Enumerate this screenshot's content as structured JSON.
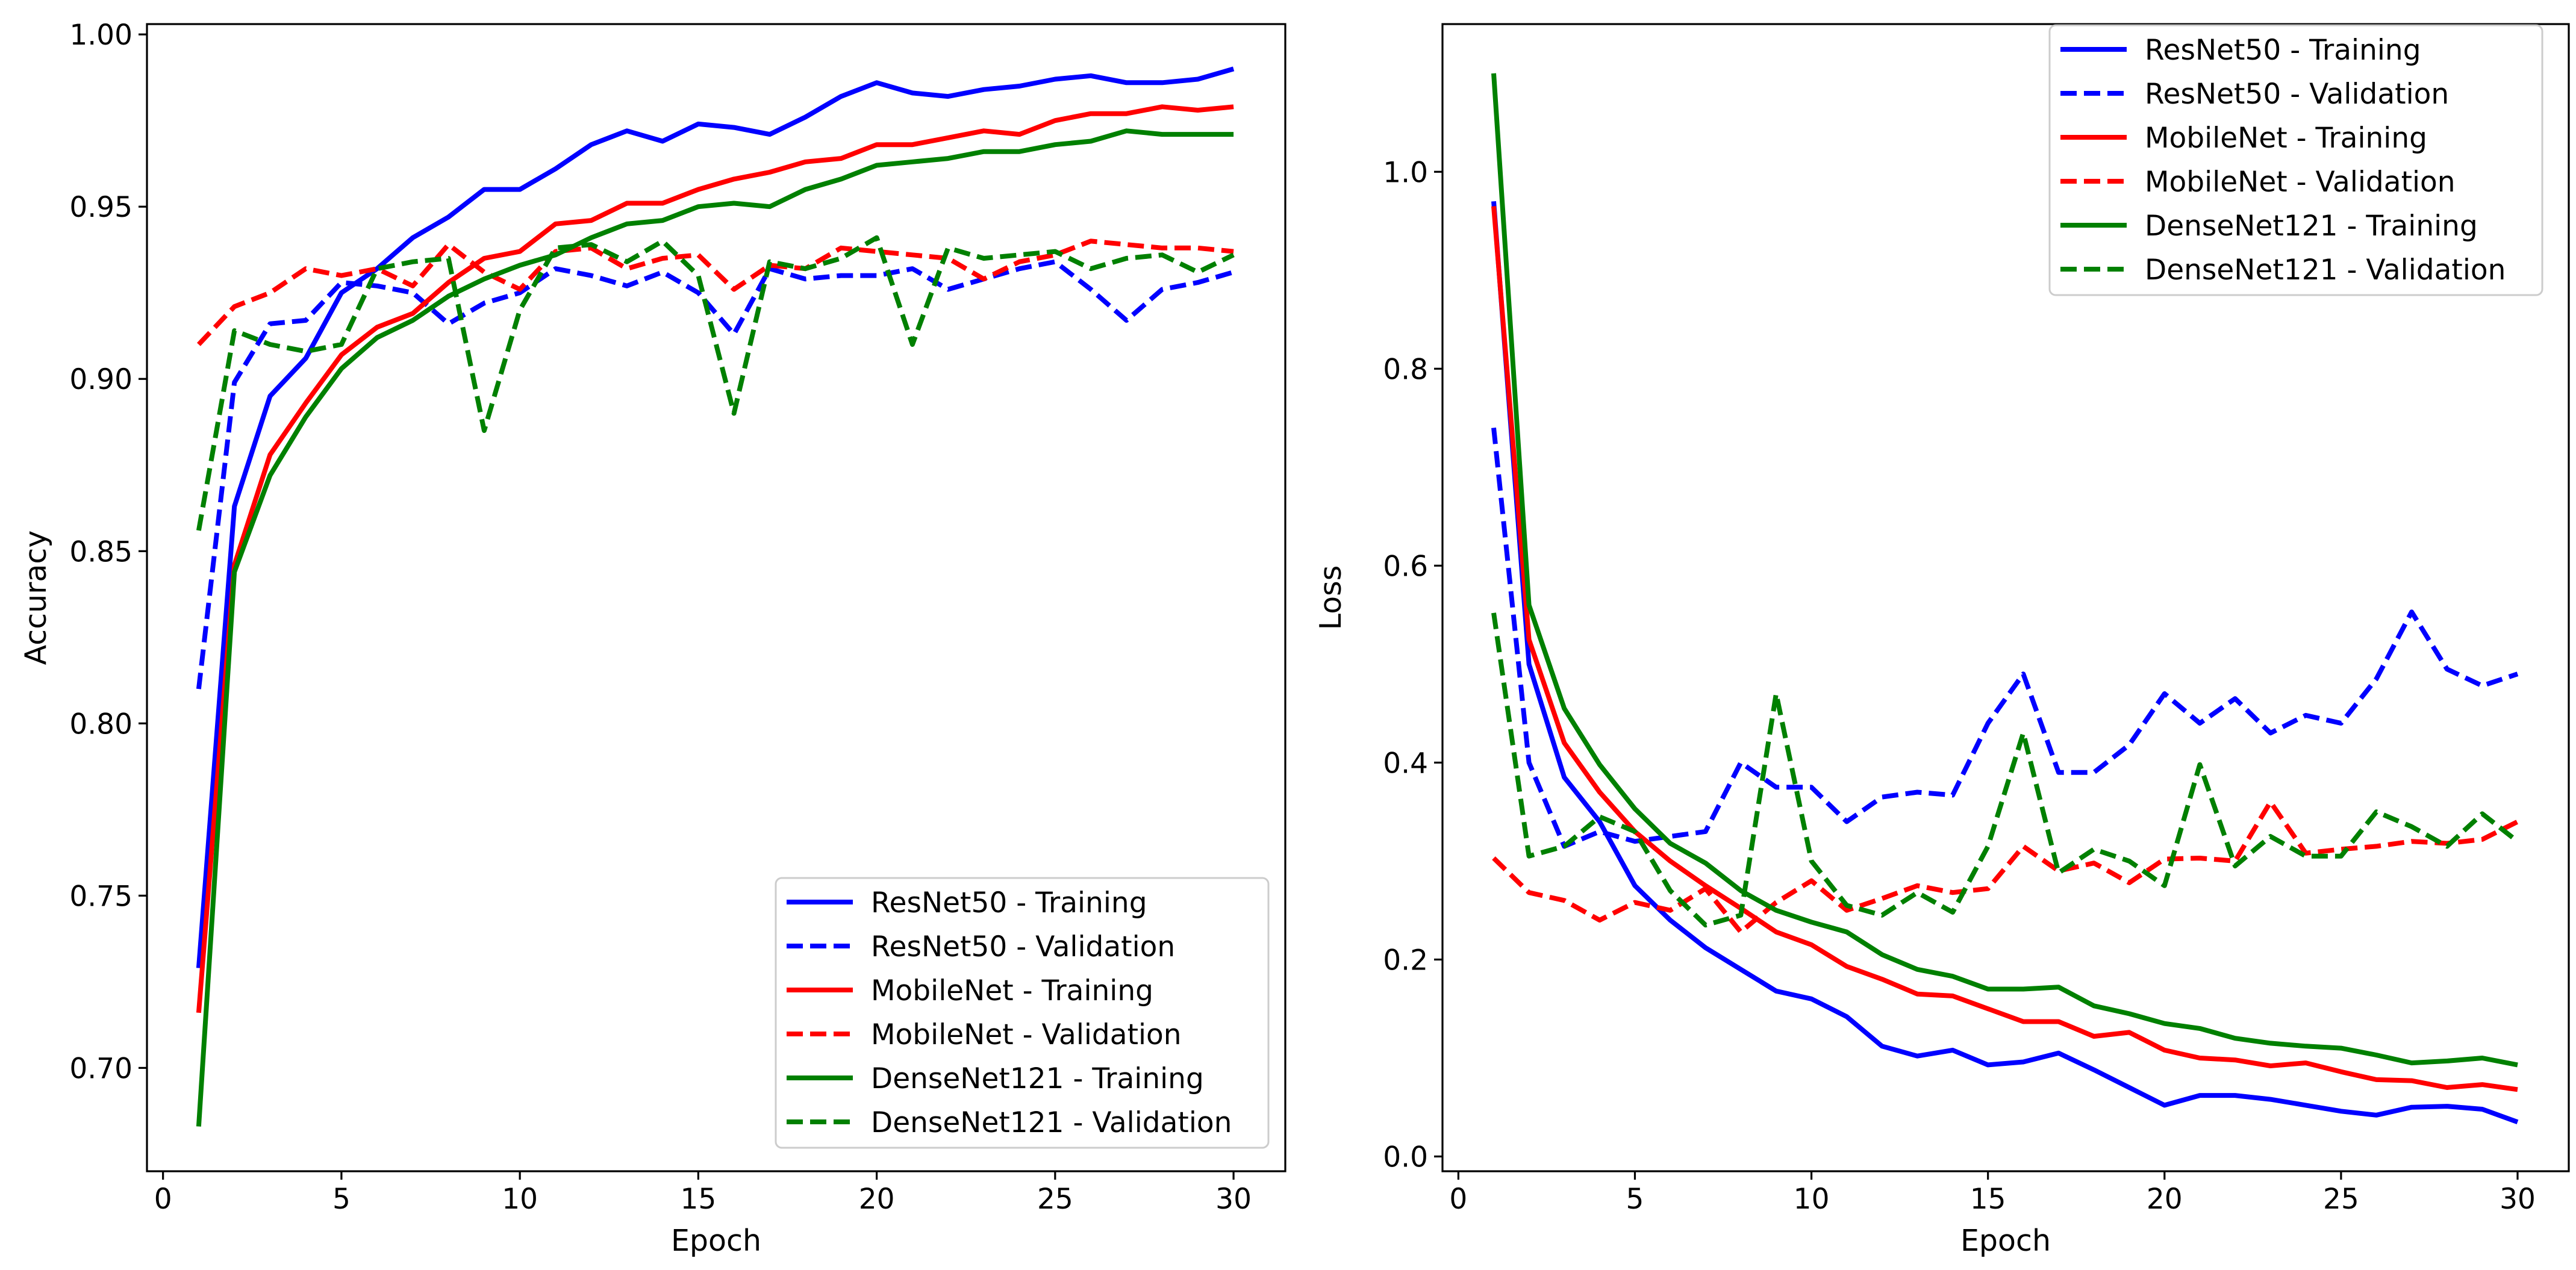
{
  "chart_data": [
    {
      "type": "line",
      "xlabel": "Epoch",
      "ylabel": "Accuracy",
      "xlim": [
        -0.45,
        31.45
      ],
      "ylim": [
        0.67,
        1.003
      ],
      "xticks": [
        0,
        5,
        10,
        15,
        20,
        25,
        30
      ],
      "yticks": [
        0.7,
        0.75,
        0.8,
        0.85,
        0.9,
        0.95,
        1.0
      ],
      "ytick_labels": [
        "0.70",
        "0.75",
        "0.80",
        "0.85",
        "0.90",
        "0.95",
        "1.00"
      ],
      "grid": false,
      "legend_position": "lower-right",
      "x": [
        1,
        2,
        3,
        4,
        5,
        6,
        7,
        8,
        9,
        10,
        11,
        12,
        13,
        14,
        15,
        16,
        17,
        18,
        19,
        20,
        21,
        22,
        23,
        24,
        25,
        26,
        27,
        28,
        29,
        30
      ],
      "series": [
        {
          "name": "ResNet50 - Training",
          "color": "#0000ff",
          "style": "solid",
          "values": [
            0.729,
            0.863,
            0.895,
            0.906,
            0.925,
            0.932,
            0.941,
            0.947,
            0.955,
            0.955,
            0.961,
            0.968,
            0.972,
            0.969,
            0.974,
            0.973,
            0.971,
            0.976,
            0.982,
            0.986,
            0.983,
            0.982,
            0.984,
            0.985,
            0.987,
            0.988,
            0.986,
            0.986,
            0.987,
            0.99
          ]
        },
        {
          "name": "ResNet50 - Validation",
          "color": "#0000ff",
          "style": "dashed",
          "values": [
            0.81,
            0.899,
            0.916,
            0.917,
            0.928,
            0.927,
            0.925,
            0.916,
            0.922,
            0.925,
            0.932,
            0.93,
            0.927,
            0.931,
            0.925,
            0.913,
            0.932,
            0.929,
            0.93,
            0.93,
            0.932,
            0.926,
            0.929,
            0.932,
            0.934,
            0.926,
            0.917,
            0.926,
            0.928,
            0.931
          ]
        },
        {
          "name": "MobileNet - Training",
          "color": "#ff0000",
          "style": "solid",
          "values": [
            0.716,
            0.846,
            0.878,
            0.893,
            0.907,
            0.915,
            0.919,
            0.928,
            0.935,
            0.937,
            0.945,
            0.946,
            0.951,
            0.951,
            0.955,
            0.958,
            0.96,
            0.963,
            0.964,
            0.968,
            0.968,
            0.97,
            0.972,
            0.971,
            0.975,
            0.977,
            0.977,
            0.979,
            0.978,
            0.979
          ]
        },
        {
          "name": "MobileNet - Validation",
          "color": "#ff0000",
          "style": "dashed",
          "values": [
            0.91,
            0.921,
            0.925,
            0.932,
            0.93,
            0.932,
            0.927,
            0.939,
            0.931,
            0.926,
            0.937,
            0.938,
            0.932,
            0.935,
            0.936,
            0.926,
            0.933,
            0.932,
            0.938,
            0.937,
            0.936,
            0.935,
            0.929,
            0.934,
            0.936,
            0.94,
            0.939,
            0.938,
            0.938,
            0.937
          ]
        },
        {
          "name": "DenseNet121 - Training",
          "color": "#008000",
          "style": "solid",
          "values": [
            0.683,
            0.844,
            0.872,
            0.889,
            0.903,
            0.912,
            0.917,
            0.924,
            0.929,
            0.933,
            0.936,
            0.941,
            0.945,
            0.946,
            0.95,
            0.951,
            0.95,
            0.955,
            0.958,
            0.962,
            0.963,
            0.964,
            0.966,
            0.966,
            0.968,
            0.969,
            0.972,
            0.971,
            0.971,
            0.971
          ]
        },
        {
          "name": "DenseNet121 - Validation",
          "color": "#008000",
          "style": "dashed",
          "values": [
            0.856,
            0.914,
            0.91,
            0.908,
            0.91,
            0.932,
            0.934,
            0.935,
            0.885,
            0.92,
            0.938,
            0.939,
            0.934,
            0.94,
            0.93,
            0.89,
            0.934,
            0.932,
            0.935,
            0.941,
            0.91,
            0.938,
            0.935,
            0.936,
            0.937,
            0.932,
            0.935,
            0.936,
            0.931,
            0.936
          ]
        }
      ]
    },
    {
      "type": "line",
      "xlabel": "Epoch",
      "ylabel": "Loss",
      "xlim": [
        -0.45,
        31.45
      ],
      "ylim": [
        -0.015,
        1.15
      ],
      "xticks": [
        0,
        5,
        10,
        15,
        20,
        25,
        30
      ],
      "yticks": [
        0.0,
        0.2,
        0.4,
        0.6,
        0.8,
        1.0
      ],
      "ytick_labels": [
        "0.0",
        "0.2",
        "0.4",
        "0.6",
        "0.8",
        "1.0"
      ],
      "grid": false,
      "legend_position": "upper-right",
      "x": [
        1,
        2,
        3,
        4,
        5,
        6,
        7,
        8,
        9,
        10,
        11,
        12,
        13,
        14,
        15,
        16,
        17,
        18,
        19,
        20,
        21,
        22,
        23,
        24,
        25,
        26,
        27,
        28,
        29,
        30
      ],
      "series": [
        {
          "name": "ResNet50 - Training",
          "color": "#0000ff",
          "style": "solid",
          "values": [
            0.97,
            0.5,
            0.385,
            0.34,
            0.275,
            0.24,
            0.212,
            0.19,
            0.168,
            0.16,
            0.142,
            0.112,
            0.102,
            0.108,
            0.093,
            0.096,
            0.105,
            0.088,
            0.07,
            0.052,
            0.062,
            0.062,
            0.058,
            0.052,
            0.046,
            0.042,
            0.05,
            0.051,
            0.048,
            0.035
          ]
        },
        {
          "name": "ResNet50 - Validation",
          "color": "#0000ff",
          "style": "dashed",
          "values": [
            0.74,
            0.4,
            0.315,
            0.33,
            0.32,
            0.325,
            0.33,
            0.4,
            0.375,
            0.375,
            0.34,
            0.365,
            0.37,
            0.367,
            0.44,
            0.49,
            0.39,
            0.39,
            0.418,
            0.47,
            0.44,
            0.465,
            0.43,
            0.448,
            0.44,
            0.485,
            0.553,
            0.495,
            0.478,
            0.49
          ]
        },
        {
          "name": "MobileNet - Training",
          "color": "#ff0000",
          "style": "solid",
          "values": [
            0.965,
            0.525,
            0.42,
            0.37,
            0.33,
            0.3,
            0.275,
            0.252,
            0.228,
            0.215,
            0.193,
            0.18,
            0.165,
            0.163,
            0.15,
            0.137,
            0.137,
            0.122,
            0.126,
            0.108,
            0.1,
            0.098,
            0.092,
            0.095,
            0.086,
            0.078,
            0.077,
            0.07,
            0.073,
            0.068
          ]
        },
        {
          "name": "MobileNet - Validation",
          "color": "#ff0000",
          "style": "dashed",
          "values": [
            0.303,
            0.268,
            0.26,
            0.24,
            0.258,
            0.25,
            0.272,
            0.228,
            0.258,
            0.28,
            0.25,
            0.262,
            0.275,
            0.268,
            0.272,
            0.315,
            0.29,
            0.298,
            0.278,
            0.302,
            0.303,
            0.3,
            0.36,
            0.308,
            0.312,
            0.315,
            0.32,
            0.318,
            0.322,
            0.34
          ]
        },
        {
          "name": "DenseNet121 - Training",
          "color": "#008000",
          "style": "solid",
          "values": [
            1.1,
            0.56,
            0.455,
            0.398,
            0.353,
            0.318,
            0.298,
            0.27,
            0.25,
            0.238,
            0.228,
            0.205,
            0.19,
            0.183,
            0.17,
            0.17,
            0.172,
            0.153,
            0.145,
            0.135,
            0.13,
            0.12,
            0.115,
            0.112,
            0.11,
            0.103,
            0.095,
            0.097,
            0.1,
            0.093
          ]
        },
        {
          "name": "DenseNet121 - Validation",
          "color": "#008000",
          "style": "dashed",
          "values": [
            0.552,
            0.305,
            0.315,
            0.345,
            0.33,
            0.27,
            0.235,
            0.245,
            0.47,
            0.3,
            0.255,
            0.245,
            0.268,
            0.248,
            0.315,
            0.43,
            0.288,
            0.312,
            0.3,
            0.275,
            0.398,
            0.295,
            0.325,
            0.305,
            0.305,
            0.35,
            0.335,
            0.315,
            0.348,
            0.32
          ]
        }
      ]
    }
  ]
}
